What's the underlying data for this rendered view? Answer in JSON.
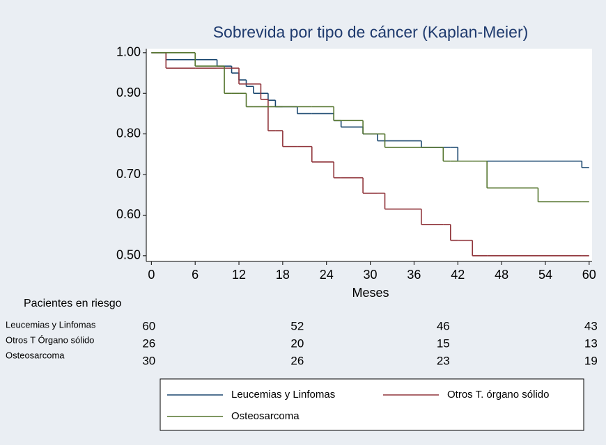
{
  "chart_data": {
    "type": "step",
    "title": "Sobrevida por tipo de cáncer (Kaplan-Meier)",
    "x_label": "Meses",
    "x": [
      0,
      2,
      6,
      9,
      10,
      11,
      12,
      13,
      14,
      15,
      16,
      17,
      18,
      20,
      22,
      25,
      26,
      29,
      31,
      32,
      37,
      40,
      41,
      42,
      44,
      46,
      53,
      59,
      60
    ],
    "series": [
      {
        "name": "Leucemias y Linfomas",
        "color": "#1a476f",
        "values": [
          1.0,
          0.983,
          0.983,
          0.967,
          0.967,
          0.95,
          0.933,
          0.917,
          0.9,
          0.9,
          0.883,
          0.867,
          0.867,
          0.85,
          0.85,
          0.833,
          0.817,
          0.8,
          0.783,
          0.783,
          0.767,
          0.767,
          0.767,
          0.733,
          0.733,
          0.733,
          0.733,
          0.717,
          0.717
        ]
      },
      {
        "name": "Otros T. órgano sólido",
        "color": "#90353b",
        "values": [
          1.0,
          0.962,
          0.962,
          0.962,
          0.962,
          0.962,
          0.923,
          0.923,
          0.923,
          0.885,
          0.808,
          0.808,
          0.769,
          0.769,
          0.731,
          0.692,
          0.692,
          0.654,
          0.654,
          0.615,
          0.577,
          0.577,
          0.538,
          0.538,
          0.5,
          0.5,
          0.5,
          0.5,
          0.5
        ]
      },
      {
        "name": "Osteosarcoma",
        "color": "#55752f",
        "values": [
          1.0,
          1.0,
          0.967,
          0.967,
          0.9,
          0.9,
          0.9,
          0.867,
          0.867,
          0.867,
          0.867,
          0.867,
          0.867,
          0.867,
          0.867,
          0.833,
          0.833,
          0.8,
          0.8,
          0.767,
          0.767,
          0.733,
          0.733,
          0.733,
          0.733,
          0.667,
          0.633,
          0.633,
          0.633
        ]
      }
    ],
    "xlim": [
      -0.7,
      60.4
    ],
    "ylim": [
      0.486,
      1.01
    ],
    "xticks": [
      0,
      6,
      12,
      18,
      24,
      30,
      36,
      42,
      48,
      54,
      60
    ],
    "yticks": [
      {
        "value": 0.5,
        "label": "0.50"
      },
      {
        "value": 0.6,
        "label": "0.60"
      },
      {
        "value": 0.7,
        "label": "0.70"
      },
      {
        "value": 0.8,
        "label": "0.80"
      },
      {
        "value": 0.9,
        "label": "0.90"
      },
      {
        "value": 1.0,
        "label": "1.00"
      }
    ],
    "grid": false,
    "legend_position": "bottom"
  },
  "risk_table": {
    "title": "Pacientes en riesgo",
    "rows": [
      {
        "label": "Leucemias y Linfomas",
        "values": [
          60,
          52,
          46,
          43
        ]
      },
      {
        "label": "Otros T  Órgano sólido",
        "values": [
          26,
          20,
          15,
          13
        ]
      },
      {
        "label": "Osteosarcoma",
        "values": [
          30,
          26,
          23,
          19
        ]
      }
    ]
  }
}
